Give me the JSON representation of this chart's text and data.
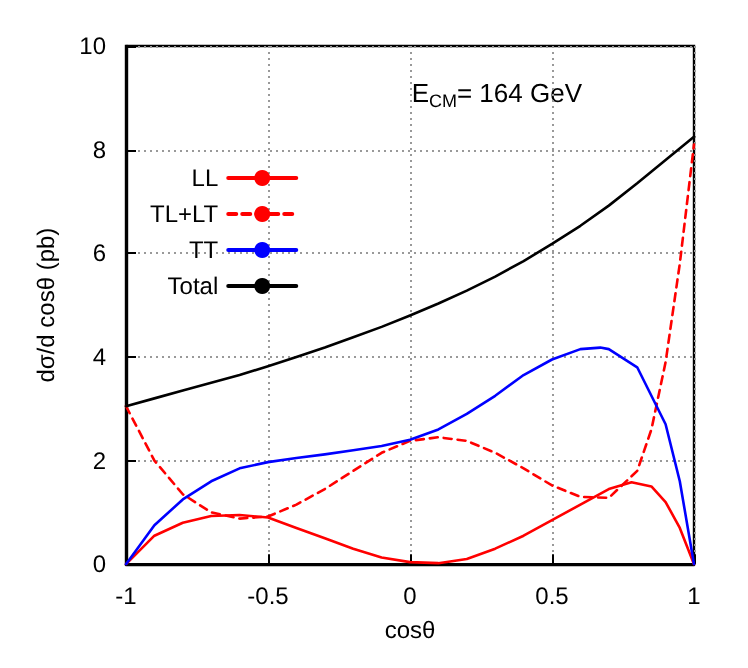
{
  "chart_data": {
    "type": "line",
    "xlabel": "cosθ",
    "ylabel": "dσ/d cosθ (pb)",
    "annotations": [
      "E$_{CM}$= 164 GeV"
    ],
    "xlim": [
      -1,
      1
    ],
    "xticks": [
      -1,
      -0.5,
      0,
      0.5,
      1
    ],
    "ylim": [
      0,
      10
    ],
    "yticks": [
      0,
      2,
      4,
      6,
      8,
      10
    ],
    "grid": true,
    "legend": "top left",
    "marker": "none",
    "series": [
      {
        "name": "LL",
        "color": "#ff0000",
        "line_style": "solid",
        "x": [
          -1,
          -0.9,
          -0.8,
          -0.7,
          -0.6,
          -0.5,
          -0.4,
          -0.3,
          -0.2,
          -0.1,
          0,
          0.1,
          0.2,
          0.3,
          0.4,
          0.5,
          0.6,
          0.7,
          0.78,
          0.85,
          0.9,
          0.95,
          1
        ],
        "values": [
          0,
          0.55,
          0.8,
          0.93,
          0.95,
          0.9,
          0.7,
          0.5,
          0.3,
          0.13,
          0.04,
          0.02,
          0.1,
          0.3,
          0.55,
          0.85,
          1.15,
          1.45,
          1.58,
          1.5,
          1.2,
          0.7,
          0
        ]
      },
      {
        "name": "TL+LT",
        "color": "#ff0000",
        "line_style": "dashed",
        "x": [
          -1,
          -0.9,
          -0.8,
          -0.7,
          -0.6,
          -0.5,
          -0.4,
          -0.3,
          -0.2,
          -0.1,
          0,
          0.1,
          0.2,
          0.3,
          0.4,
          0.5,
          0.6,
          0.7,
          0.8,
          0.85,
          0.9,
          0.95,
          1
        ],
        "values": [
          3.05,
          2.0,
          1.35,
          1.0,
          0.88,
          0.92,
          1.15,
          1.45,
          1.8,
          2.15,
          2.38,
          2.45,
          2.38,
          2.15,
          1.85,
          1.52,
          1.3,
          1.28,
          1.8,
          2.6,
          3.9,
          5.8,
          8.1
        ]
      },
      {
        "name": "TT",
        "color": "#0000ff",
        "line_style": "solid",
        "x": [
          -1,
          -0.9,
          -0.8,
          -0.7,
          -0.6,
          -0.5,
          -0.4,
          -0.3,
          -0.2,
          -0.1,
          0,
          0.1,
          0.2,
          0.3,
          0.4,
          0.5,
          0.6,
          0.67,
          0.7,
          0.8,
          0.9,
          0.95,
          1
        ],
        "values": [
          0,
          0.75,
          1.25,
          1.6,
          1.85,
          1.97,
          2.05,
          2.12,
          2.2,
          2.28,
          2.4,
          2.6,
          2.9,
          3.25,
          3.65,
          3.95,
          4.15,
          4.18,
          4.15,
          3.8,
          2.7,
          1.6,
          0
        ]
      },
      {
        "name": "Total",
        "color": "#000000",
        "line_style": "solid",
        "x": [
          -1,
          -0.9,
          -0.8,
          -0.7,
          -0.6,
          -0.5,
          -0.4,
          -0.3,
          -0.2,
          -0.1,
          0,
          0.1,
          0.2,
          0.3,
          0.4,
          0.5,
          0.6,
          0.7,
          0.8,
          0.9,
          1
        ],
        "values": [
          3.05,
          3.2,
          3.35,
          3.5,
          3.65,
          3.82,
          4.0,
          4.18,
          4.38,
          4.58,
          4.8,
          5.03,
          5.28,
          5.55,
          5.85,
          6.18,
          6.53,
          6.92,
          7.35,
          7.8,
          8.25
        ]
      }
    ]
  }
}
